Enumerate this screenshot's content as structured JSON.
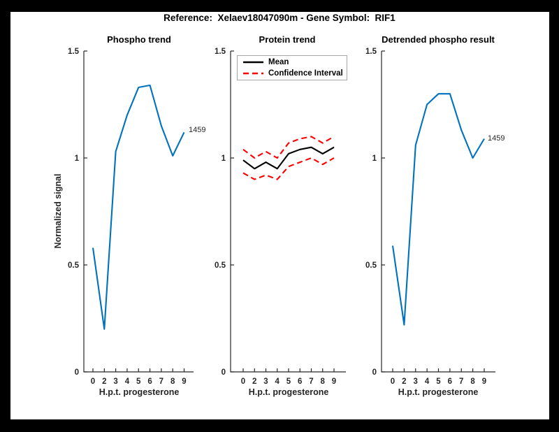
{
  "figure": {
    "title": "Reference:  Xelaev18047090m - Gene Symbol:  RIF1"
  },
  "colors": {
    "line_blue": "#0072BD",
    "ci_red": "#ff0000",
    "mean_black": "#000000",
    "axis": "#262626",
    "legend_border": "#a6a6a6",
    "figure_bg": "#ffffff",
    "page_bg": "#000000"
  },
  "axis": {
    "xlabel": "H.p.t. progesterone",
    "ylabel": "Normalized signal",
    "x_ticks": [
      "0",
      "2",
      "3",
      "4",
      "5",
      "6",
      "7",
      "8",
      "9"
    ],
    "y_ticks": [
      "0",
      "0.5",
      "1",
      "1.5"
    ],
    "ylim": [
      0,
      1.5
    ]
  },
  "legend": {
    "items": [
      {
        "label": "Mean",
        "style": "solid",
        "color": "#000000"
      },
      {
        "label": "Confidence Interval",
        "style": "dashed",
        "color": "#ff0000"
      }
    ],
    "position": "top-left inside Protein trend subplot"
  },
  "chart_data": [
    {
      "type": "line",
      "title": "Phospho trend",
      "xlabel": "H.p.t. progesterone",
      "ylabel": "Normalized signal",
      "ylim": [
        0,
        1.5
      ],
      "grid": false,
      "categories": [
        "0",
        "2",
        "3",
        "4",
        "5",
        "6",
        "7",
        "8",
        "9"
      ],
      "end_label": "1459",
      "series": [
        {
          "name": "1459 phospho signal",
          "color": "#0072BD",
          "style": "solid",
          "values": [
            0.58,
            0.2,
            1.03,
            1.2,
            1.33,
            1.34,
            1.15,
            1.01,
            1.12
          ]
        }
      ]
    },
    {
      "type": "line",
      "title": "Protein trend",
      "xlabel": "H.p.t. progesterone",
      "ylim": [
        0,
        1.5
      ],
      "grid": false,
      "legend_position": "top-left",
      "categories": [
        "0",
        "2",
        "3",
        "4",
        "5",
        "6",
        "7",
        "8",
        "9"
      ],
      "series": [
        {
          "name": "Mean",
          "color": "#000000",
          "style": "solid",
          "values": [
            0.99,
            0.95,
            0.98,
            0.95,
            1.02,
            1.04,
            1.05,
            1.02,
            1.05
          ]
        },
        {
          "name": "Confidence Interval upper",
          "color": "#ff0000",
          "style": "dashed",
          "values": [
            1.04,
            1.0,
            1.03,
            1.0,
            1.07,
            1.09,
            1.1,
            1.07,
            1.1
          ]
        },
        {
          "name": "Confidence Interval lower",
          "color": "#ff0000",
          "style": "dashed",
          "values": [
            0.93,
            0.9,
            0.92,
            0.9,
            0.96,
            0.98,
            1.0,
            0.97,
            1.0
          ]
        }
      ]
    },
    {
      "type": "line",
      "title": "Detrended phospho result",
      "xlabel": "H.p.t. progesterone",
      "ylim": [
        0,
        1.5
      ],
      "grid": false,
      "categories": [
        "0",
        "2",
        "3",
        "4",
        "5",
        "6",
        "7",
        "8",
        "9"
      ],
      "end_label": "1459",
      "series": [
        {
          "name": "1459 detrended phospho",
          "color": "#0072BD",
          "style": "solid",
          "values": [
            0.59,
            0.22,
            1.06,
            1.25,
            1.3,
            1.3,
            1.13,
            1.0,
            1.09
          ]
        }
      ]
    }
  ]
}
